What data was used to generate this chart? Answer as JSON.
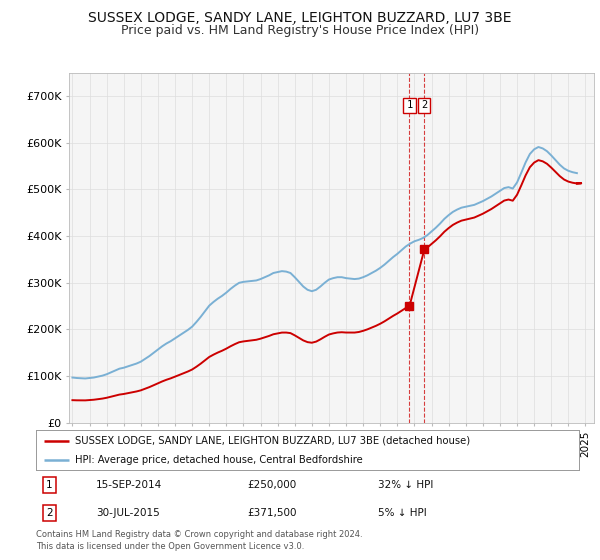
{
  "title": "SUSSEX LODGE, SANDY LANE, LEIGHTON BUZZARD, LU7 3BE",
  "subtitle": "Price paid vs. HM Land Registry's House Price Index (HPI)",
  "title_fontsize": 10,
  "subtitle_fontsize": 9,
  "background_color": "#ffffff",
  "plot_bg_color": "#f5f5f5",
  "ylabel_ticks": [
    "£0",
    "£100K",
    "£200K",
    "£300K",
    "£400K",
    "£500K",
    "£600K",
    "£700K"
  ],
  "ytick_values": [
    0,
    100000,
    200000,
    300000,
    400000,
    500000,
    600000,
    700000
  ],
  "ylim": [
    0,
    750000
  ],
  "xlim_start": 1994.8,
  "xlim_end": 2025.5,
  "hpi_years": [
    1995.0,
    1995.25,
    1995.5,
    1995.75,
    1996.0,
    1996.25,
    1996.5,
    1996.75,
    1997.0,
    1997.25,
    1997.5,
    1997.75,
    1998.0,
    1998.25,
    1998.5,
    1998.75,
    1999.0,
    1999.25,
    1999.5,
    1999.75,
    2000.0,
    2000.25,
    2000.5,
    2000.75,
    2001.0,
    2001.25,
    2001.5,
    2001.75,
    2002.0,
    2002.25,
    2002.5,
    2002.75,
    2003.0,
    2003.25,
    2003.5,
    2003.75,
    2004.0,
    2004.25,
    2004.5,
    2004.75,
    2005.0,
    2005.25,
    2005.5,
    2005.75,
    2006.0,
    2006.25,
    2006.5,
    2006.75,
    2007.0,
    2007.25,
    2007.5,
    2007.75,
    2008.0,
    2008.25,
    2008.5,
    2008.75,
    2009.0,
    2009.25,
    2009.5,
    2009.75,
    2010.0,
    2010.25,
    2010.5,
    2010.75,
    2011.0,
    2011.25,
    2011.5,
    2011.75,
    2012.0,
    2012.25,
    2012.5,
    2012.75,
    2013.0,
    2013.25,
    2013.5,
    2013.75,
    2014.0,
    2014.25,
    2014.5,
    2014.75,
    2015.0,
    2015.25,
    2015.5,
    2015.75,
    2016.0,
    2016.25,
    2016.5,
    2016.75,
    2017.0,
    2017.25,
    2017.5,
    2017.75,
    2018.0,
    2018.25,
    2018.5,
    2018.75,
    2019.0,
    2019.25,
    2019.5,
    2019.75,
    2020.0,
    2020.25,
    2020.5,
    2020.75,
    2021.0,
    2021.25,
    2021.5,
    2021.75,
    2022.0,
    2022.25,
    2022.5,
    2022.75,
    2023.0,
    2023.25,
    2023.5,
    2023.75,
    2024.0,
    2024.25,
    2024.5
  ],
  "hpi_values": [
    97000,
    96000,
    95500,
    95000,
    96000,
    97000,
    99000,
    101000,
    104000,
    108000,
    112000,
    116000,
    118000,
    121000,
    124000,
    127000,
    131000,
    137000,
    143000,
    150000,
    157000,
    164000,
    170000,
    175000,
    181000,
    187000,
    193000,
    199000,
    206000,
    216000,
    227000,
    239000,
    251000,
    259000,
    266000,
    272000,
    279000,
    287000,
    294000,
    300000,
    302000,
    303000,
    304000,
    305000,
    308000,
    312000,
    316000,
    321000,
    323000,
    325000,
    324000,
    321000,
    312000,
    302000,
    292000,
    285000,
    282000,
    285000,
    292000,
    300000,
    307000,
    310000,
    312000,
    312000,
    310000,
    309000,
    308000,
    309000,
    312000,
    316000,
    321000,
    326000,
    332000,
    339000,
    347000,
    355000,
    362000,
    370000,
    378000,
    384000,
    389000,
    392000,
    396000,
    402000,
    410000,
    418000,
    427000,
    437000,
    445000,
    452000,
    457000,
    461000,
    463000,
    465000,
    467000,
    471000,
    475000,
    480000,
    485000,
    491000,
    497000,
    503000,
    505000,
    502000,
    515000,
    536000,
    558000,
    576000,
    586000,
    591000,
    588000,
    582000,
    573000,
    563000,
    553000,
    545000,
    540000,
    537000,
    535000
  ],
  "sale_points": [
    {
      "year": 2014.71,
      "price": 250000,
      "label": "1"
    },
    {
      "year": 2015.58,
      "price": 371500,
      "label": "2"
    }
  ],
  "hpi_color": "#7ab0d4",
  "sale_color": "#cc0000",
  "vline_color": "#cc0000",
  "grid_color": "#dddddd",
  "xtick_years": [
    1995,
    1996,
    1997,
    1998,
    1999,
    2000,
    2001,
    2002,
    2003,
    2004,
    2005,
    2006,
    2007,
    2008,
    2009,
    2010,
    2011,
    2012,
    2013,
    2014,
    2015,
    2016,
    2017,
    2018,
    2019,
    2020,
    2021,
    2022,
    2023,
    2024,
    2025
  ],
  "legend_entries": [
    "SUSSEX LODGE, SANDY LANE, LEIGHTON BUZZARD, LU7 3BE (detached house)",
    "HPI: Average price, detached house, Central Bedfordshire"
  ],
  "table_rows": [
    {
      "num": "1",
      "date": "15-SEP-2014",
      "price": "£250,000",
      "change": "32% ↓ HPI"
    },
    {
      "num": "2",
      "date": "30-JUL-2015",
      "price": "£371,500",
      "change": "5% ↓ HPI"
    }
  ],
  "footnote": "Contains HM Land Registry data © Crown copyright and database right 2024.\nThis data is licensed under the Open Government Licence v3.0."
}
